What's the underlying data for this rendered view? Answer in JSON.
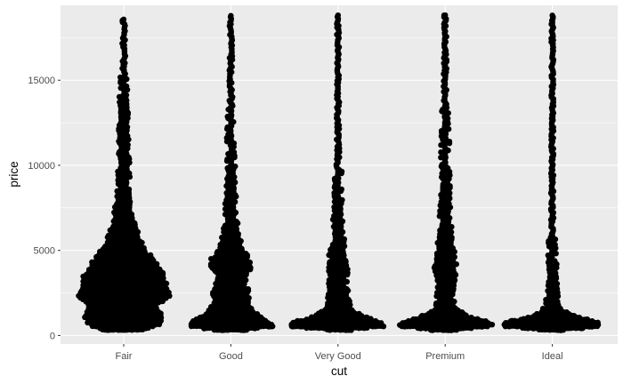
{
  "chart_data": {
    "type": "beeswarm",
    "xlabel": "cut",
    "ylabel": "price",
    "categories": [
      "Fair",
      "Good",
      "Very Good",
      "Premium",
      "Ideal"
    ],
    "y_ticks": [
      0,
      5000,
      10000,
      15000
    ],
    "y_tick_labels": [
      "0",
      "5000",
      "10000",
      "15000"
    ],
    "ylim": [
      -500,
      19400
    ],
    "grid": true,
    "colors": {
      "panel_background": "#ebebeb",
      "grid_major": "#ffffff",
      "points": "#000000",
      "tick_label": "#4d4d4d",
      "tick_mark": "#333333"
    },
    "series": [
      {
        "category": "Fair",
        "price_min": 337,
        "price_max": 18574,
        "density_profile": [
          [
            337,
            0.4
          ],
          [
            600,
            0.62
          ],
          [
            1000,
            0.72
          ],
          [
            1300,
            0.7
          ],
          [
            1700,
            0.6
          ],
          [
            2000,
            0.72
          ],
          [
            2300,
            0.86
          ],
          [
            2700,
            0.8
          ],
          [
            3200,
            0.76
          ],
          [
            3700,
            0.7
          ],
          [
            4200,
            0.6
          ],
          [
            4700,
            0.48
          ],
          [
            5300,
            0.34
          ],
          [
            6000,
            0.24
          ],
          [
            7000,
            0.16
          ],
          [
            8000,
            0.11
          ],
          [
            9000,
            0.09
          ],
          [
            10000,
            0.08
          ],
          [
            11000,
            0.07
          ],
          [
            12500,
            0.06
          ],
          [
            14000,
            0.05
          ],
          [
            15500,
            0.04
          ],
          [
            17000,
            0.04
          ],
          [
            18574,
            0.03
          ]
        ]
      },
      {
        "category": "Good",
        "price_min": 327,
        "price_max": 18788,
        "density_profile": [
          [
            327,
            0.3
          ],
          [
            550,
            0.8
          ],
          [
            800,
            0.7
          ],
          [
            1100,
            0.54
          ],
          [
            1500,
            0.38
          ],
          [
            2000,
            0.3
          ],
          [
            2500,
            0.32
          ],
          [
            3000,
            0.28
          ],
          [
            3500,
            0.24
          ],
          [
            4000,
            0.36
          ],
          [
            4500,
            0.34
          ],
          [
            5000,
            0.22
          ],
          [
            6000,
            0.12
          ],
          [
            7000,
            0.09
          ],
          [
            8000,
            0.07
          ],
          [
            10000,
            0.05
          ],
          [
            12000,
            0.045
          ],
          [
            14000,
            0.04
          ],
          [
            16000,
            0.035
          ],
          [
            18788,
            0.03
          ]
        ]
      },
      {
        "category": "Very Good",
        "price_min": 336,
        "price_max": 18818,
        "density_profile": [
          [
            336,
            0.25
          ],
          [
            550,
            0.88
          ],
          [
            800,
            0.8
          ],
          [
            1100,
            0.5
          ],
          [
            1500,
            0.26
          ],
          [
            2000,
            0.2
          ],
          [
            2500,
            0.16
          ],
          [
            3000,
            0.14
          ],
          [
            3500,
            0.15
          ],
          [
            4000,
            0.17
          ],
          [
            4500,
            0.15
          ],
          [
            5000,
            0.12
          ],
          [
            6000,
            0.08
          ],
          [
            7000,
            0.06
          ],
          [
            8000,
            0.05
          ],
          [
            10000,
            0.04
          ],
          [
            12000,
            0.035
          ],
          [
            14000,
            0.032
          ],
          [
            16000,
            0.03
          ],
          [
            18818,
            0.03
          ]
        ]
      },
      {
        "category": "Premium",
        "price_min": 326,
        "price_max": 18823,
        "density_profile": [
          [
            326,
            0.25
          ],
          [
            550,
            0.88
          ],
          [
            800,
            0.8
          ],
          [
            1100,
            0.46
          ],
          [
            1500,
            0.2
          ],
          [
            2000,
            0.14
          ],
          [
            2500,
            0.12
          ],
          [
            3000,
            0.14
          ],
          [
            3500,
            0.16
          ],
          [
            4000,
            0.19
          ],
          [
            4500,
            0.17
          ],
          [
            5000,
            0.14
          ],
          [
            6000,
            0.1
          ],
          [
            7000,
            0.08
          ],
          [
            8000,
            0.065
          ],
          [
            10000,
            0.05
          ],
          [
            12000,
            0.045
          ],
          [
            14000,
            0.04
          ],
          [
            16000,
            0.035
          ],
          [
            18823,
            0.03
          ]
        ]
      },
      {
        "category": "Ideal",
        "price_min": 326,
        "price_max": 18806,
        "density_profile": [
          [
            326,
            0.25
          ],
          [
            550,
            0.92
          ],
          [
            800,
            0.84
          ],
          [
            1100,
            0.42
          ],
          [
            1500,
            0.16
          ],
          [
            2000,
            0.1
          ],
          [
            2500,
            0.07
          ],
          [
            3000,
            0.06
          ],
          [
            3500,
            0.06
          ],
          [
            4000,
            0.055
          ],
          [
            4500,
            0.05
          ],
          [
            5000,
            0.045
          ],
          [
            6000,
            0.04
          ],
          [
            7000,
            0.035
          ],
          [
            8000,
            0.033
          ],
          [
            10000,
            0.03
          ],
          [
            12000,
            0.03
          ],
          [
            14000,
            0.028
          ],
          [
            16000,
            0.027
          ],
          [
            18806,
            0.025
          ]
        ]
      }
    ]
  }
}
